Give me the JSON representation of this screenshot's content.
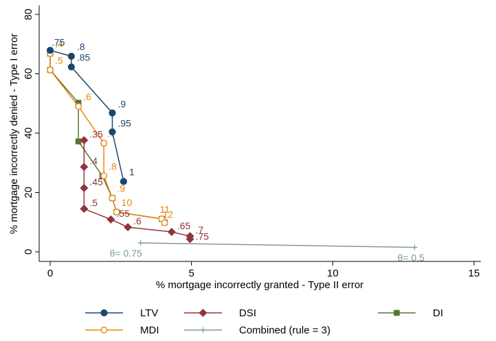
{
  "chart_data": {
    "type": "line",
    "title": "",
    "xlabel": "% mortgage incorrectly granted - Type II error",
    "ylabel": "% mortgage incorrectly denied - Type I error",
    "xlim": [
      0,
      15
    ],
    "ylim": [
      0,
      80
    ],
    "xticks": [
      0,
      5,
      10,
      15
    ],
    "yticks": [
      0,
      20,
      40,
      60,
      80
    ],
    "grid": false,
    "legend_position": "bottom",
    "series": [
      {
        "name": "LTV",
        "color": "#1a476f",
        "marker": "filled-circle",
        "points": [
          {
            "x": 0.0,
            "y": 67.9,
            "label": ".75"
          },
          {
            "x": 0.75,
            "y": 65.9,
            "label": ".8"
          },
          {
            "x": 0.75,
            "y": 62.3,
            "label": ".85"
          },
          {
            "x": 2.2,
            "y": 46.8,
            "label": ".9"
          },
          {
            "x": 2.2,
            "y": 40.4,
            "label": ".95"
          },
          {
            "x": 2.6,
            "y": 23.7,
            "label": "1"
          }
        ]
      },
      {
        "name": "DSI",
        "color": "#90353b",
        "marker": "filled-diamond",
        "points": [
          {
            "x": 1.2,
            "y": 37.6,
            "label": ".35"
          },
          {
            "x": 1.2,
            "y": 28.6,
            "label": ".4"
          },
          {
            "x": 1.2,
            "y": 21.5,
            "label": ".45"
          },
          {
            "x": 1.2,
            "y": 14.5,
            "label": ".5"
          },
          {
            "x": 2.15,
            "y": 10.9,
            "label": ".55"
          },
          {
            "x": 2.75,
            "y": 8.3,
            "label": ".6"
          },
          {
            "x": 4.3,
            "y": 6.7,
            "label": ".65"
          },
          {
            "x": 4.95,
            "y": 5.3,
            "label": ".7"
          },
          {
            "x": 4.95,
            "y": 4.3,
            "label": ".75"
          }
        ]
      },
      {
        "name": "DI",
        "color": "#55752f",
        "marker": "filled-square",
        "points": [
          {
            "x": 0.0,
            "y": 66.8,
            "label": ""
          },
          {
            "x": 0.0,
            "y": 61.3,
            "label": ""
          },
          {
            "x": 1.0,
            "y": 50.2,
            "label": ""
          },
          {
            "x": 1.0,
            "y": 37.2,
            "label": ""
          },
          {
            "x": 1.85,
            "y": 25.5,
            "label": ""
          },
          {
            "x": 2.2,
            "y": 18.1,
            "label": ""
          },
          {
            "x": 2.35,
            "y": 13.4,
            "label": ""
          },
          {
            "x": 3.95,
            "y": 11.1,
            "label": ""
          },
          {
            "x": 4.05,
            "y": 9.9,
            "label": ""
          }
        ]
      },
      {
        "name": "MDI",
        "color": "#e8850f",
        "marker": "hollow-circle",
        "points": [
          {
            "x": 0.0,
            "y": 66.8,
            "label": ".4"
          },
          {
            "x": 0.0,
            "y": 61.3,
            "label": ".5"
          },
          {
            "x": 1.0,
            "y": 49.0,
            "label": ".6"
          },
          {
            "x": 1.9,
            "y": 36.6,
            "label": ".7"
          },
          {
            "x": 1.9,
            "y": 25.6,
            "label": ".8"
          },
          {
            "x": 2.2,
            "y": 18.1,
            "label": ".9"
          },
          {
            "x": 2.35,
            "y": 13.4,
            "label": "10"
          },
          {
            "x": 3.95,
            "y": 11.1,
            "label": "11"
          },
          {
            "x": 4.05,
            "y": 9.8,
            "label": "12"
          }
        ]
      },
      {
        "name": "Combined (rule = 3)",
        "color": "#7f9a94",
        "marker": "plus",
        "points": [
          {
            "x": 3.2,
            "y": 3.0,
            "label": "θ= 0.75"
          },
          {
            "x": 12.9,
            "y": 1.5,
            "label": "θ= 0.5"
          }
        ]
      }
    ]
  }
}
